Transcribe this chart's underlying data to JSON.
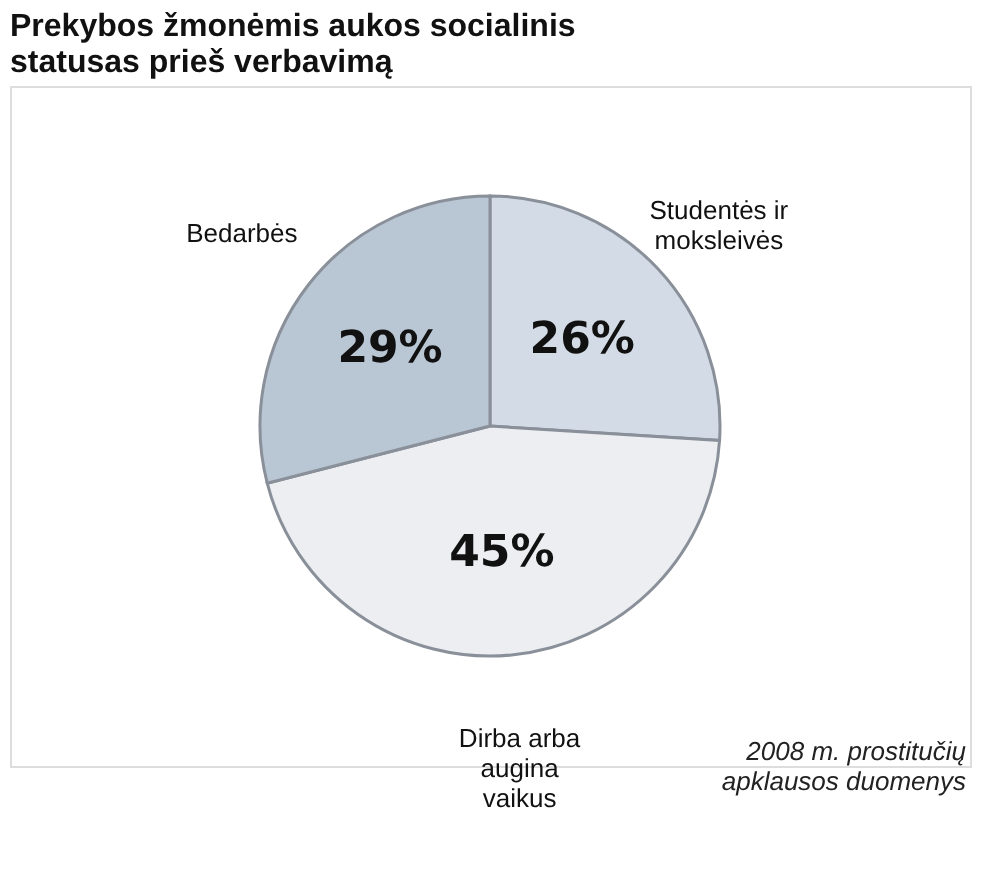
{
  "chart_data": {
    "type": "pie",
    "title": "Prekybos žmonėmis aukos socialinis statusas prieš verbavimą",
    "categories": [
      "Studentės ir moksleivės",
      "Dirba arba augina vaikus",
      "Bedarbės"
    ],
    "values": [
      26,
      45,
      29
    ],
    "colors": [
      "#d3dce6",
      "#eceef2",
      "#b9c6d4"
    ],
    "value_labels": [
      "26%",
      "45%",
      "29%"
    ],
    "legend": false,
    "annotations": [
      "2008 m. prostitučių apklausos duomenys"
    ]
  }
}
